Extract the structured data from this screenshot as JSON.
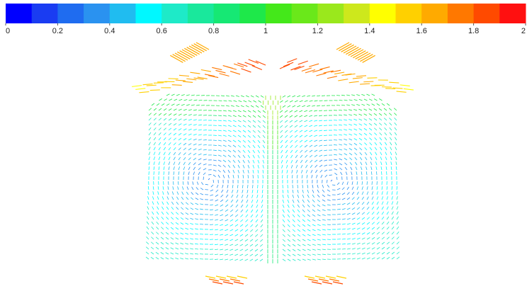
{
  "colorbar": {
    "lim": [
      0,
      2
    ],
    "ticks": [
      0,
      0.2,
      0.4,
      0.6,
      0.8,
      1,
      1.2,
      1.4,
      1.6,
      1.8,
      2
    ],
    "colors": [
      "#0000ff",
      "#1a3cf2",
      "#1f6cf0",
      "#2a92f0",
      "#20bcf0",
      "#00f8ff",
      "#1eeac8",
      "#19e89c",
      "#16e874",
      "#1ee84a",
      "#44e81a",
      "#6ae81a",
      "#9ae81c",
      "#cde81c",
      "#ffff00",
      "#ffd000",
      "#ffaa00",
      "#ff7800",
      "#ff4a00",
      "#ff1010"
    ]
  }
}
